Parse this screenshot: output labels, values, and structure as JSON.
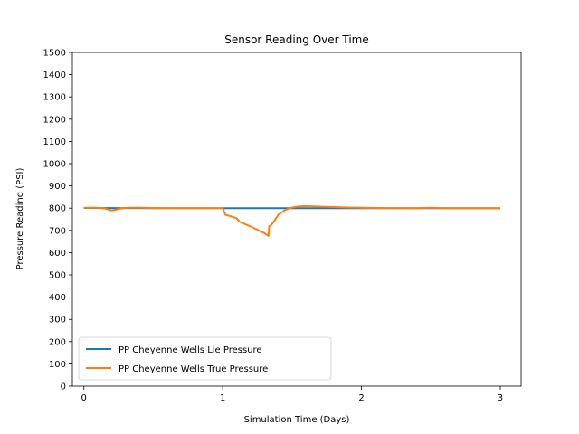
{
  "chart_data": {
    "type": "line",
    "title": "Sensor Reading Over Time",
    "xlabel": "Simulation Time (Days)",
    "ylabel": "Pressure Reading (PSI)",
    "xlim": [
      -0.083,
      3.15
    ],
    "ylim": [
      0,
      1500
    ],
    "xticks": [
      0,
      1,
      2,
      3
    ],
    "yticks": [
      0,
      100,
      200,
      300,
      400,
      500,
      600,
      700,
      800,
      900,
      1000,
      1100,
      1200,
      1300,
      1400,
      1500
    ],
    "grid": false,
    "legend_position": "bottom-left",
    "colors": {
      "lie": "#1f77b4",
      "true": "#ff7f0e"
    },
    "series": [
      {
        "name": "PP Cheyenne Wells Lie Pressure",
        "color": "#1f77b4",
        "x": [
          0,
          0.5,
          1.0,
          1.5,
          2.0,
          2.5,
          3.0
        ],
        "y": [
          801,
          800,
          800,
          800,
          800,
          800,
          800
        ]
      },
      {
        "name": "PP Cheyenne Wells True Pressure",
        "color": "#ff7f0e",
        "x": [
          0,
          0.08,
          0.15,
          0.18,
          0.2,
          0.23,
          0.27,
          0.33,
          0.4,
          0.5,
          0.6,
          0.8,
          1.0,
          1.01,
          1.02,
          1.05,
          1.1,
          1.12,
          1.2,
          1.3,
          1.33,
          1.335,
          1.35,
          1.37,
          1.4,
          1.45,
          1.5,
          1.55,
          1.6,
          1.7,
          1.8,
          1.9,
          2.0,
          2.2,
          2.4,
          2.5,
          2.6,
          2.8,
          3.0
        ],
        "y": [
          802,
          802,
          799,
          793,
          790,
          793,
          799,
          802,
          802,
          801,
          800,
          800,
          800,
          785,
          770,
          765,
          755,
          740,
          718,
          688,
          675,
          718,
          725,
          740,
          770,
          792,
          803,
          808,
          809,
          807,
          805,
          803,
          802,
          800,
          799,
          802,
          799,
          799,
          799
        ]
      }
    ]
  }
}
